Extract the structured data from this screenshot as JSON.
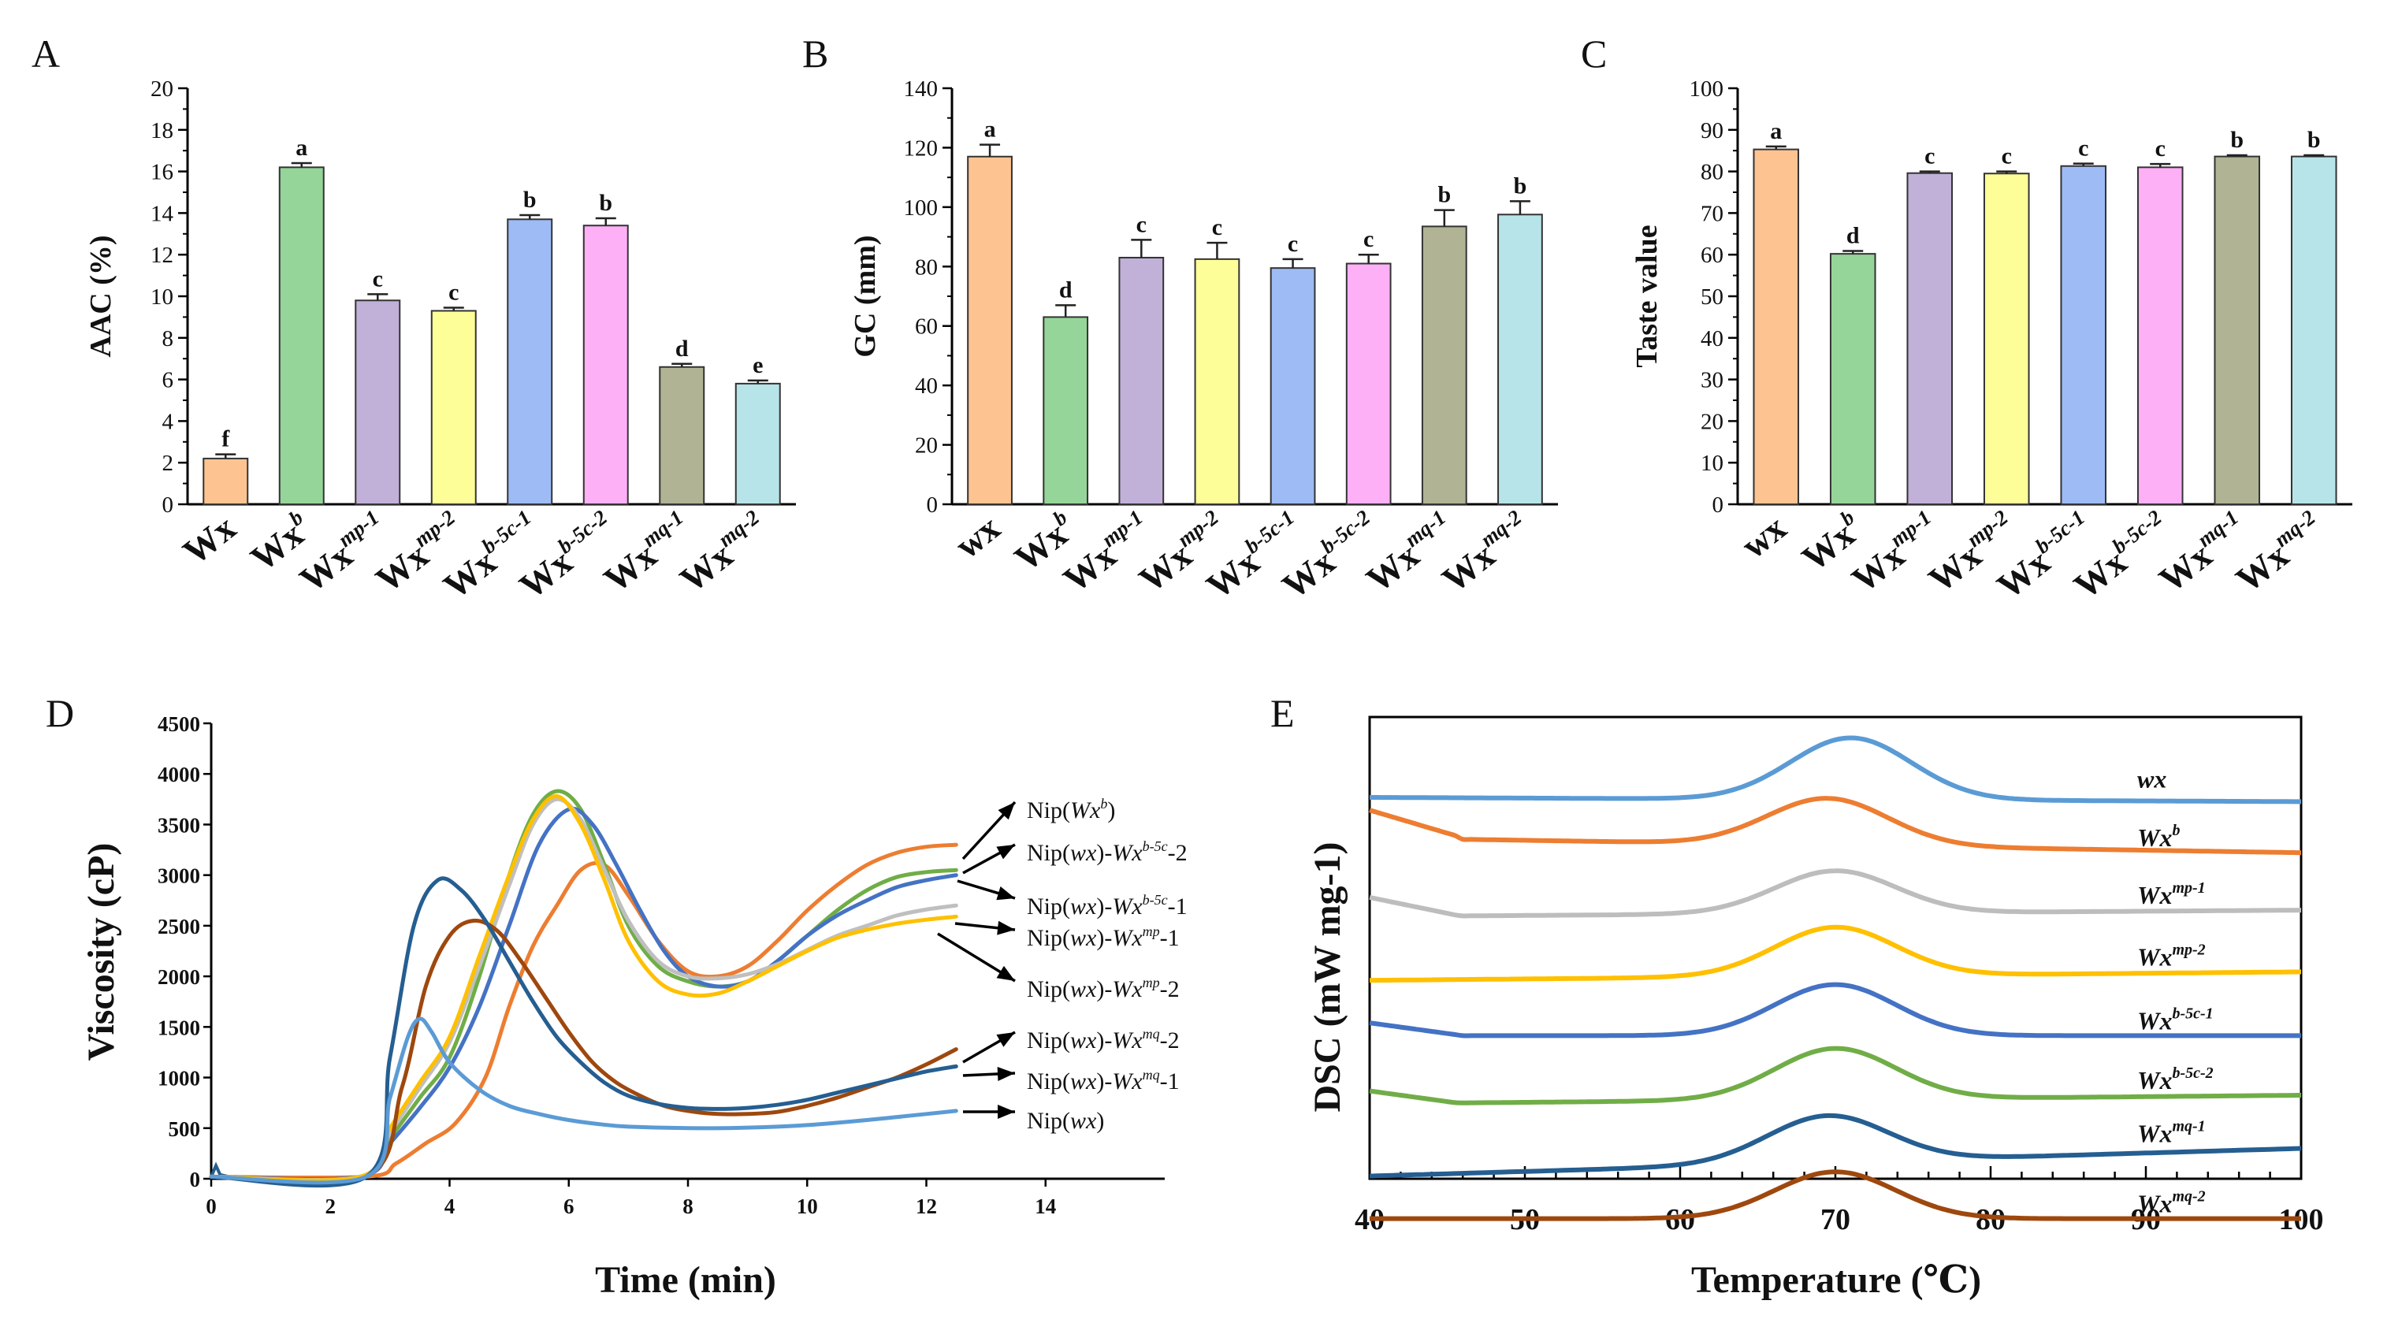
{
  "chart_data": [
    {
      "panel": "A",
      "type": "bar",
      "ylabel": "AAC (%)",
      "ylim": [
        0,
        20
      ],
      "yticks": [
        "0",
        "2",
        "4",
        "6",
        "8",
        "10",
        "12",
        "14",
        "16",
        "18",
        "20"
      ],
      "categories": [
        {
          "base": "Wx",
          "sup": ""
        },
        {
          "base": "Wx",
          "sup": "b"
        },
        {
          "base": "Wx",
          "sup": "mp-1"
        },
        {
          "base": "Wx",
          "sup": "mp-2"
        },
        {
          "base": "Wx",
          "sup": "b-5c-1"
        },
        {
          "base": "Wx",
          "sup": "b-5c-2"
        },
        {
          "base": "Wx",
          "sup": "mq-1"
        },
        {
          "base": "Wx",
          "sup": "mq-2"
        }
      ],
      "values": [
        2.2,
        16.2,
        9.8,
        9.3,
        13.7,
        13.4,
        6.6,
        5.8
      ],
      "errors": [
        0.2,
        0.2,
        0.3,
        0.15,
        0.2,
        0.35,
        0.15,
        0.15
      ],
      "significance": [
        "f",
        "a",
        "c",
        "c",
        "b",
        "b",
        "d",
        "e"
      ]
    },
    {
      "panel": "B",
      "type": "bar",
      "ylabel": "GC (mm)",
      "ylim": [
        0,
        140
      ],
      "yticks": [
        "0",
        "20",
        "40",
        "60",
        "80",
        "100",
        "120",
        "140"
      ],
      "categories": [
        {
          "base": "wx",
          "sup": ""
        },
        {
          "base": "Wx",
          "sup": "b"
        },
        {
          "base": "Wx",
          "sup": "mp-1"
        },
        {
          "base": "Wx",
          "sup": "mp-2"
        },
        {
          "base": "Wx",
          "sup": "b-5c-1"
        },
        {
          "base": "Wx",
          "sup": "b-5c-2"
        },
        {
          "base": "Wx",
          "sup": "mq-1"
        },
        {
          "base": "Wx",
          "sup": "mq-2"
        }
      ],
      "values": [
        117,
        63,
        83,
        82.5,
        79.5,
        81,
        93.5,
        97.5
      ],
      "errors": [
        4,
        4,
        6,
        5.5,
        3,
        3,
        5.5,
        4.5
      ],
      "significance": [
        "a",
        "d",
        "c",
        "c",
        "c",
        "c",
        "b",
        "b"
      ]
    },
    {
      "panel": "C",
      "type": "bar",
      "ylabel": "Taste value",
      "ylim": [
        0,
        100
      ],
      "yticks": [
        "0",
        "10",
        "20",
        "30",
        "40",
        "50",
        "60",
        "70",
        "80",
        "90",
        "100"
      ],
      "categories": [
        {
          "base": "wx",
          "sup": ""
        },
        {
          "base": "Wx",
          "sup": "b"
        },
        {
          "base": "Wx",
          "sup": "mp-1"
        },
        {
          "base": "Wx",
          "sup": "mp-2"
        },
        {
          "base": "Wx",
          "sup": "b-5c-1"
        },
        {
          "base": "Wx",
          "sup": "b-5c-2"
        },
        {
          "base": "Wx",
          "sup": "mq-1"
        },
        {
          "base": "Wx",
          "sup": "mq-2"
        }
      ],
      "values": [
        85.3,
        60.2,
        79.6,
        79.5,
        81.3,
        81,
        83.6,
        83.6
      ],
      "errors": [
        0.7,
        0.7,
        0.4,
        0.5,
        0.6,
        0.8,
        0.3,
        0.3
      ],
      "significance": [
        "a",
        "d",
        "c",
        "c",
        "c",
        "c",
        "b",
        "b"
      ]
    },
    {
      "panel": "D",
      "type": "line",
      "xlabel": "Time (min)",
      "ylabel": "Viscosity (cP)",
      "xlim": [
        0,
        16
      ],
      "ylim": [
        0,
        4500
      ],
      "xticks": [
        "0",
        "2",
        "4",
        "6",
        "8",
        "10",
        "12",
        "14"
      ],
      "yticks": [
        "0",
        "500",
        "1000",
        "1500",
        "2000",
        "2500",
        "3000",
        "3500",
        "4000",
        "4500"
      ],
      "series": [
        {
          "name_parts": [
            {
              "t": "Nip("
            },
            {
              "t": "Wx",
              "i": true
            },
            {
              "t": "b",
              "sup": true
            },
            {
              "t": ")"
            }
          ],
          "x": [
            0,
            2.6,
            3.1,
            3.6,
            4.1,
            4.6,
            5.0,
            5.4,
            5.8,
            6.2,
            6.6,
            7.0,
            7.5,
            8.0,
            8.5,
            9.0,
            9.5,
            10,
            10.5,
            11,
            11.5,
            12,
            12.5
          ],
          "y": [
            20,
            20,
            150,
            350,
            550,
            1000,
            1700,
            2300,
            2700,
            3050,
            3100,
            2800,
            2350,
            2050,
            2000,
            2100,
            2350,
            2650,
            2900,
            3100,
            3220,
            3280,
            3300
          ]
        },
        {
          "name_parts": [
            {
              "t": "Nip("
            },
            {
              "t": "wx",
              "i": true
            },
            {
              "t": ")-"
            },
            {
              "t": "Wx",
              "i": true
            },
            {
              "t": "b-5c",
              "sup": true
            },
            {
              "t": "-2"
            }
          ],
          "x": [
            0,
            2.5,
            3.0,
            3.5,
            4.0,
            4.5,
            5.0,
            5.4,
            5.8,
            6.2,
            6.6,
            7.0,
            7.5,
            8.0,
            8.5,
            9.0,
            9.5,
            10,
            10.5,
            11,
            11.5,
            12,
            12.5
          ],
          "y": [
            20,
            20,
            400,
            800,
            1200,
            2000,
            3000,
            3600,
            3830,
            3650,
            3100,
            2500,
            2100,
            1950,
            1900,
            1950,
            2150,
            2400,
            2650,
            2850,
            2980,
            3030,
            3050
          ]
        },
        {
          "name_parts": [
            {
              "t": "Nip("
            },
            {
              "t": "wx",
              "i": true
            },
            {
              "t": ")-"
            },
            {
              "t": "Wx",
              "i": true
            },
            {
              "t": "b-5c",
              "sup": true
            },
            {
              "t": "-1"
            }
          ],
          "x": [
            0,
            2.5,
            3.0,
            3.5,
            4.0,
            4.5,
            5.0,
            5.5,
            6.0,
            6.4,
            6.8,
            7.2,
            7.6,
            8.0,
            8.5,
            9.0,
            9.5,
            10,
            10.5,
            11,
            11.5,
            12,
            12.5
          ],
          "y": [
            20,
            20,
            350,
            700,
            1100,
            1700,
            2500,
            3300,
            3650,
            3500,
            3100,
            2650,
            2250,
            2000,
            1900,
            1950,
            2150,
            2400,
            2600,
            2750,
            2880,
            2950,
            3000
          ]
        },
        {
          "name_parts": [
            {
              "t": "Nip("
            },
            {
              "t": "wx",
              "i": true
            },
            {
              "t": ")-"
            },
            {
              "t": "Wx",
              "i": true
            },
            {
              "t": "mp",
              "sup": true
            },
            {
              "t": "-1"
            }
          ],
          "x": [
            0,
            2.5,
            3.0,
            3.5,
            4.0,
            4.5,
            5.0,
            5.4,
            5.8,
            6.2,
            6.6,
            7.0,
            7.5,
            8.0,
            8.5,
            9.0,
            9.5,
            10,
            10.5,
            11,
            11.5,
            12,
            12.5
          ],
          "y": [
            20,
            20,
            450,
            900,
            1350,
            2100,
            2900,
            3500,
            3750,
            3550,
            3050,
            2550,
            2150,
            2000,
            1980,
            2020,
            2120,
            2260,
            2400,
            2500,
            2600,
            2660,
            2700
          ]
        },
        {
          "name_parts": [
            {
              "t": "Nip("
            },
            {
              "t": "wx",
              "i": true
            },
            {
              "t": ")-"
            },
            {
              "t": "Wx",
              "i": true
            },
            {
              "t": "mp",
              "sup": true
            },
            {
              "t": "-2"
            }
          ],
          "x": [
            0,
            2.5,
            3.0,
            3.5,
            4.0,
            4.5,
            5.0,
            5.4,
            5.8,
            6.2,
            6.6,
            7.0,
            7.5,
            8.0,
            8.5,
            9.0,
            9.5,
            10,
            10.5,
            11,
            11.5,
            12,
            12.5
          ],
          "y": [
            20,
            20,
            500,
            950,
            1400,
            2200,
            3000,
            3550,
            3780,
            3500,
            2950,
            2350,
            1950,
            1820,
            1830,
            1950,
            2100,
            2250,
            2380,
            2460,
            2520,
            2560,
            2590
          ]
        },
        {
          "name_parts": [
            {
              "t": "Nip("
            },
            {
              "t": "wx",
              "i": true
            },
            {
              "t": ")-"
            },
            {
              "t": "Wx",
              "i": true
            },
            {
              "t": "mq",
              "sup": true
            },
            {
              "t": "-2"
            }
          ],
          "x": [
            0,
            2.6,
            3.2,
            3.6,
            4.0,
            4.4,
            4.8,
            5.2,
            5.6,
            6.0,
            6.4,
            6.8,
            7.2,
            7.6,
            8.0,
            8.5,
            9.0,
            9.5,
            10,
            10.5,
            11,
            11.5,
            12,
            12.5
          ],
          "y": [
            20,
            20,
            900,
            1900,
            2400,
            2550,
            2450,
            2150,
            1800,
            1450,
            1150,
            950,
            820,
            720,
            670,
            640,
            640,
            660,
            720,
            800,
            900,
            1000,
            1130,
            1280
          ]
        },
        {
          "name_parts": [
            {
              "t": "Nip("
            },
            {
              "t": "wx",
              "i": true
            },
            {
              "t": ")-"
            },
            {
              "t": "Wx",
              "i": true
            },
            {
              "t": "mq",
              "sup": true
            },
            {
              "t": "-1"
            }
          ],
          "x": [
            0,
            2.6,
            3.0,
            3.4,
            3.8,
            4.2,
            4.6,
            5.0,
            5.4,
            5.8,
            6.2,
            6.6,
            7.0,
            7.5,
            8.0,
            8.5,
            9.0,
            9.5,
            10,
            10.5,
            11,
            11.5,
            12,
            12.5
          ],
          "y": [
            20,
            20,
            1200,
            2500,
            2950,
            2850,
            2550,
            2150,
            1750,
            1400,
            1150,
            950,
            820,
            740,
            700,
            690,
            700,
            730,
            780,
            850,
            920,
            990,
            1060,
            1110
          ]
        },
        {
          "name_parts": [
            {
              "t": "Nip("
            },
            {
              "t": "wx",
              "i": true
            },
            {
              "t": ")"
            }
          ],
          "x": [
            0,
            2.6,
            3.0,
            3.3,
            3.5,
            3.7,
            4.0,
            4.5,
            5.0,
            5.5,
            6.0,
            6.5,
            7.0,
            8.0,
            9.0,
            10,
            11,
            12,
            12.5
          ],
          "y": [
            20,
            20,
            800,
            1400,
            1580,
            1450,
            1150,
            880,
            720,
            640,
            580,
            540,
            515,
            500,
            505,
            530,
            580,
            640,
            670
          ]
        }
      ]
    },
    {
      "panel": "E",
      "type": "line",
      "xlabel": "Temperature (℃)",
      "ylabel": "DSC (mW mg-1)",
      "xlim": [
        40,
        100
      ],
      "xticks": [
        "40",
        "50",
        "60",
        "70",
        "80",
        "90",
        "100"
      ],
      "series": [
        {
          "name_base": "wx",
          "name_sup": "",
          "baseline_left": 0.0,
          "baseline_right": 0.02,
          "peak_at": 71,
          "peak_height": 0.29,
          "peak_width": 5.5
        },
        {
          "name_base": "Wx",
          "name_sup": "b",
          "baseline_left": 0.19,
          "baseline_right": 0.26,
          "peak_at": 69.5,
          "peak_height": 0.22,
          "peak_width": 5.5,
          "left_start": 0.06
        },
        {
          "name_base": "Wx",
          "name_sup": "mp-1",
          "baseline_left": 0.56,
          "baseline_right": 0.53,
          "peak_at": 70,
          "peak_height": 0.2,
          "peak_width": 5.5,
          "left_start": 0.47
        },
        {
          "name_base": "Wx",
          "name_sup": "mp-2",
          "baseline_left": 0.86,
          "baseline_right": 0.82,
          "peak_at": 70,
          "peak_height": 0.23,
          "peak_width": 5.5
        },
        {
          "name_base": "Wx",
          "name_sup": "b-5c-1",
          "baseline_left": 1.12,
          "baseline_right": 1.12,
          "peak_at": 70,
          "peak_height": 0.24,
          "peak_width": 5.5,
          "left_start": 1.06
        },
        {
          "name_base": "Wx",
          "name_sup": "b-5c-2",
          "baseline_left": 1.44,
          "baseline_right": 1.4,
          "peak_at": 70,
          "peak_height": 0.24,
          "peak_width": 5.5,
          "left_start": 1.38
        },
        {
          "name_base": "Wx",
          "name_sup": "mq-1",
          "baseline_left": 1.78,
          "baseline_right": 1.65,
          "peak_at": 69.5,
          "peak_height": 0.22,
          "peak_width": 5.5
        },
        {
          "name_base": "Wx",
          "name_sup": "mq-2",
          "baseline_left": 1.98,
          "baseline_right": 1.98,
          "peak_at": 70,
          "peak_height": 0.22,
          "peak_width": 5.5
        }
      ]
    }
  ],
  "colors": {
    "bars": [
      "#FDC492",
      "#96D59A",
      "#C1B1D9",
      "#FEFE99",
      "#9EBBF5",
      "#FDB0F6",
      "#B0B494",
      "#B7E4E8"
    ],
    "lines_D": [
      "#ED7D31",
      "#70AD47",
      "#4472C4",
      "#BFBFBF",
      "#FFC000",
      "#9E480E",
      "#255E91",
      "#5B9BD5"
    ],
    "lines_E": [
      "#5B9BD5",
      "#ED7D31",
      "#BDBDBD",
      "#FFC000",
      "#4472C4",
      "#70AD47",
      "#255E91",
      "#9E480E"
    ]
  },
  "panel_labels": [
    "A",
    "B",
    "C",
    "D",
    "E"
  ]
}
